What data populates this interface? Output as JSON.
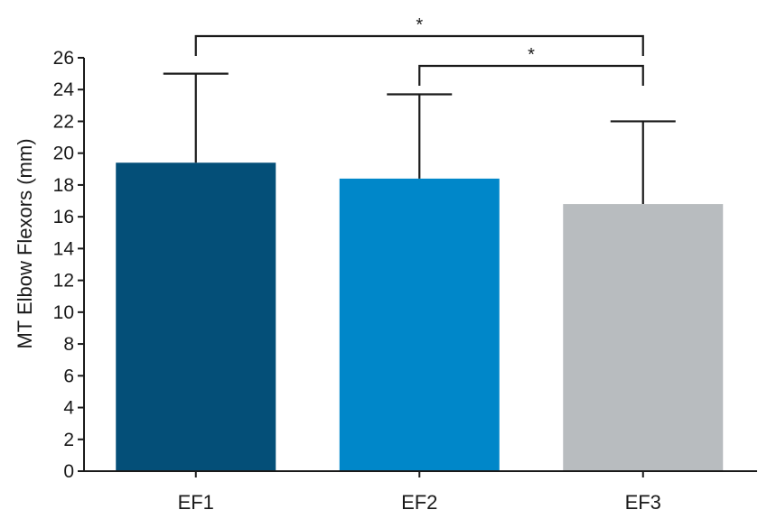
{
  "chart_data": {
    "type": "bar",
    "title": "",
    "xlabel": "",
    "ylabel": "MT Elbow Flexors (mm)",
    "categories": [
      "EF1",
      "EF2",
      "EF3"
    ],
    "values": [
      19.4,
      18.4,
      16.8
    ],
    "error_upper": [
      25.0,
      23.7,
      22.0
    ],
    "ylim": [
      0,
      26
    ],
    "yticks": [
      0,
      2,
      4,
      6,
      8,
      10,
      12,
      14,
      16,
      18,
      20,
      22,
      24,
      26
    ],
    "colors": [
      "#044F78",
      "#0087C9",
      "#B8BCBF"
    ],
    "grid": false,
    "legend": "none",
    "significance": [
      {
        "from": "EF1",
        "to": "EF3",
        "label": "*"
      },
      {
        "from": "EF2",
        "to": "EF3",
        "label": "*"
      }
    ]
  }
}
